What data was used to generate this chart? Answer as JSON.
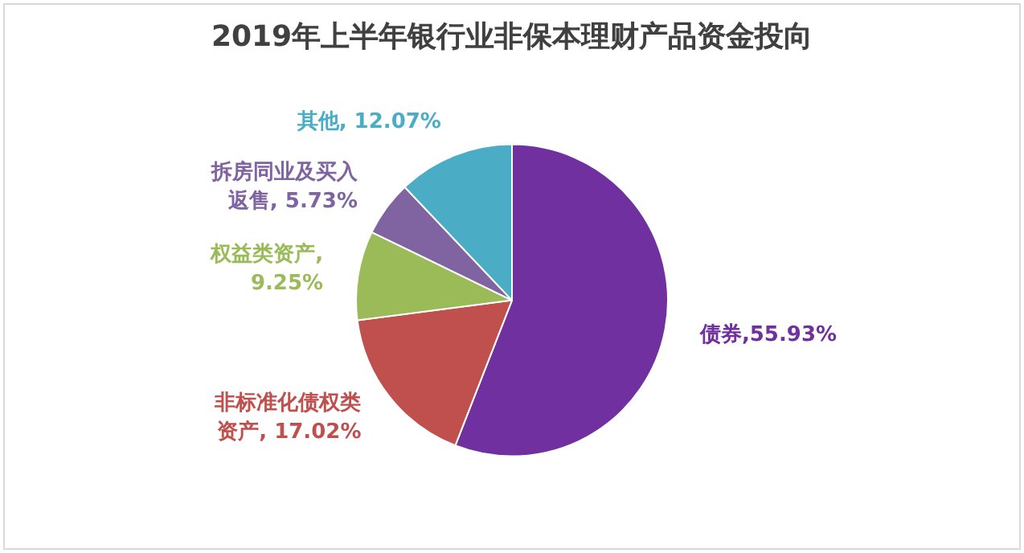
{
  "chart_data": {
    "type": "pie",
    "title": "2019年上半年银行业非保本理财产品资金投向",
    "categories": [
      "债券",
      "非标准化债权类资产",
      "权益类资产",
      "拆房同业及买入返售",
      "其他"
    ],
    "values": [
      55.93,
      17.02,
      9.25,
      5.73,
      12.07
    ],
    "colors": [
      "#7030a0",
      "#c0504d",
      "#9bbb59",
      "#8064a2",
      "#4bacc6"
    ],
    "value_labels": [
      ",55.93%",
      ", 17.02%",
      ", 9.25%",
      ", 5.73%",
      ", 12.07%"
    ],
    "legend": false
  }
}
